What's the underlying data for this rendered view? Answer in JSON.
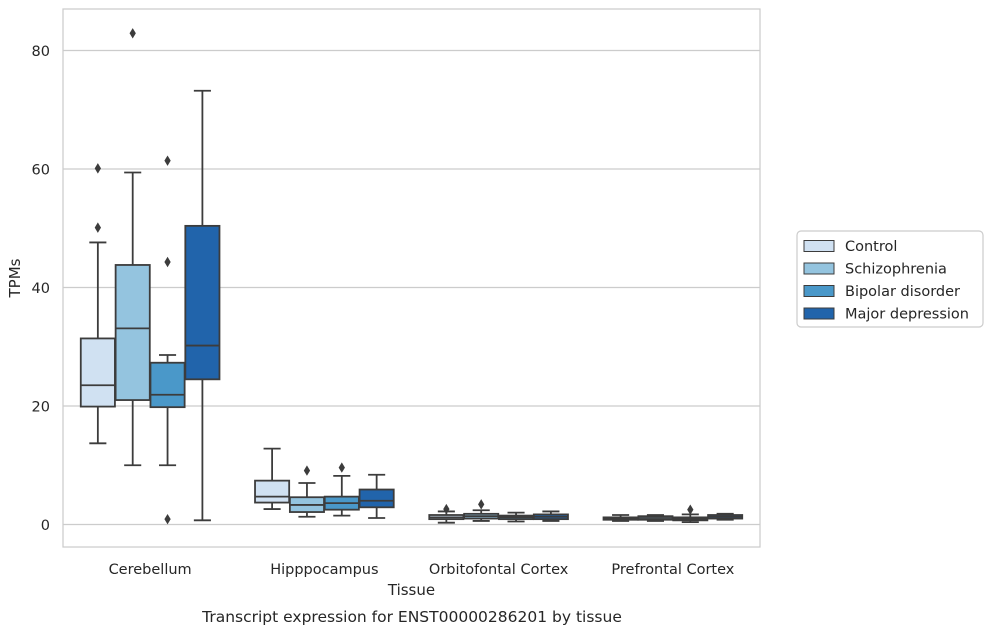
{
  "chart_data": {
    "type": "box",
    "title": "Transcript expression for ENST00000286201 by tissue",
    "xlabel": "Tissue",
    "ylabel": "TPMs",
    "ylim": [
      -3.8,
      87
    ],
    "yticks": [
      0,
      20,
      40,
      60,
      80
    ],
    "grid": "horizontal",
    "legend_position": "center-right",
    "categories": [
      "Cerebellum",
      "Hipppocampus",
      "Orbitofontal Cortex",
      "Prefrontal Cortex"
    ],
    "series": [
      {
        "name": "Control",
        "color": "#d0e1f2",
        "boxes": [
          {
            "whisker_low": 13.7,
            "q1": 19.9,
            "median": 23.5,
            "q3": 31.4,
            "whisker_high": 47.6,
            "outliers": [
              60.1,
              50.1
            ]
          },
          {
            "whisker_low": 2.6,
            "q1": 3.7,
            "median": 4.7,
            "q3": 7.4,
            "whisker_high": 12.8,
            "outliers": []
          },
          {
            "whisker_low": 0.3,
            "q1": 0.9,
            "median": 1.2,
            "q3": 1.6,
            "whisker_high": 2.2,
            "outliers": [
              2.6
            ]
          },
          {
            "whisker_low": 0.6,
            "q1": 0.8,
            "median": 1.0,
            "q3": 1.2,
            "whisker_high": 1.6,
            "outliers": []
          }
        ]
      },
      {
        "name": "Schizophrenia",
        "color": "#94c4df",
        "boxes": [
          {
            "whisker_low": 10.0,
            "q1": 21.0,
            "median": 33.1,
            "q3": 43.8,
            "whisker_high": 59.4,
            "outliers": [
              82.9
            ]
          },
          {
            "whisker_low": 1.3,
            "q1": 2.1,
            "median": 3.3,
            "q3": 4.6,
            "whisker_high": 7.0,
            "outliers": [
              9.1
            ]
          },
          {
            "whisker_low": 0.6,
            "q1": 1.0,
            "median": 1.4,
            "q3": 1.8,
            "whisker_high": 2.4,
            "outliers": [
              3.4
            ]
          },
          {
            "whisker_low": 0.6,
            "q1": 0.8,
            "median": 1.1,
            "q3": 1.4,
            "whisker_high": 1.6,
            "outliers": []
          }
        ]
      },
      {
        "name": "Bipolar disorder",
        "color": "#4a98c9",
        "boxes": [
          {
            "whisker_low": 10.0,
            "q1": 19.8,
            "median": 21.9,
            "q3": 27.3,
            "whisker_high": 28.6,
            "outliers": [
              61.4,
              44.3,
              0.9
            ]
          },
          {
            "whisker_low": 1.5,
            "q1": 2.5,
            "median": 3.6,
            "q3": 4.7,
            "whisker_high": 8.2,
            "outliers": [
              9.6
            ]
          },
          {
            "whisker_low": 0.5,
            "q1": 0.9,
            "median": 1.2,
            "q3": 1.5,
            "whisker_high": 2.0,
            "outliers": []
          },
          {
            "whisker_low": 0.4,
            "q1": 0.7,
            "median": 1.0,
            "q3": 1.2,
            "whisker_high": 1.7,
            "outliers": [
              2.5
            ]
          }
        ]
      },
      {
        "name": "Major depression",
        "color": "#2164ab",
        "boxes": [
          {
            "whisker_low": 0.7,
            "q1": 24.5,
            "median": 30.2,
            "q3": 50.4,
            "whisker_high": 73.2,
            "outliers": []
          },
          {
            "whisker_low": 1.1,
            "q1": 2.9,
            "median": 4.0,
            "q3": 5.9,
            "whisker_high": 8.4,
            "outliers": []
          },
          {
            "whisker_low": 0.6,
            "q1": 0.9,
            "median": 1.3,
            "q3": 1.7,
            "whisker_high": 2.2,
            "outliers": []
          },
          {
            "whisker_low": 0.8,
            "q1": 1.0,
            "median": 1.3,
            "q3": 1.6,
            "whisker_high": 1.8,
            "outliers": []
          }
        ]
      }
    ]
  }
}
